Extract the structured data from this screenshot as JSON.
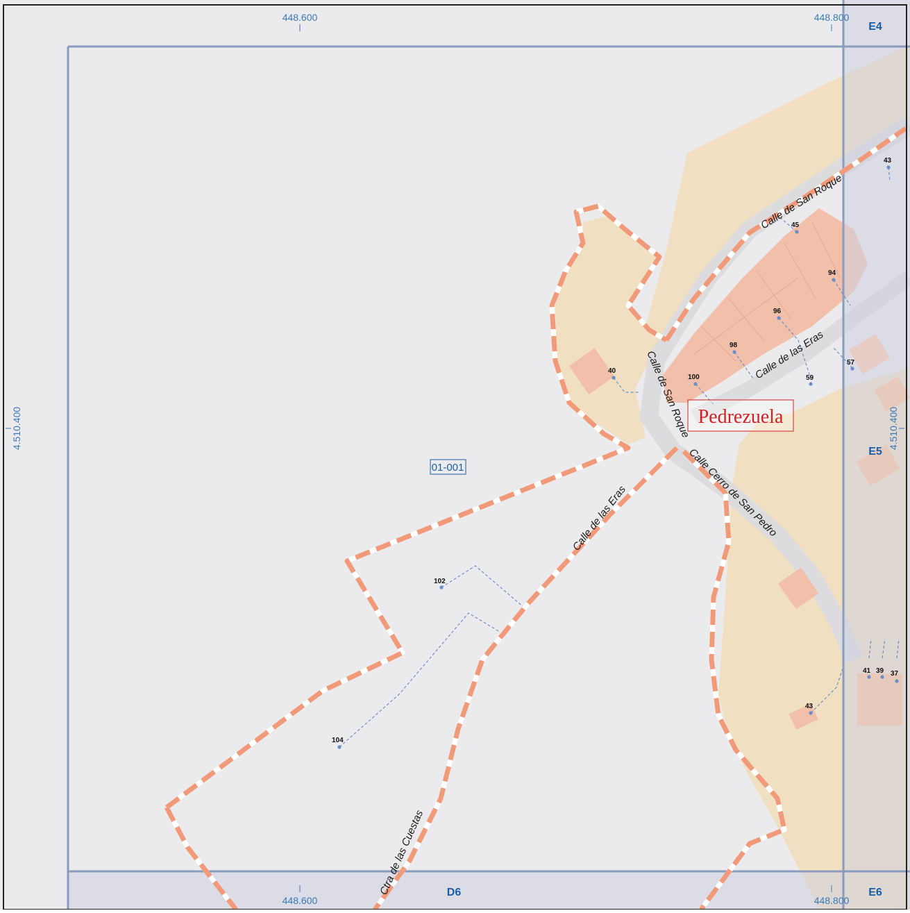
{
  "map": {
    "place_name": "Pedrezuela",
    "section_id": "01-001",
    "colors": {
      "background": "#ebebed",
      "urban_area": "#f1dfc2",
      "buildings": "#f1bfaa",
      "adjacent_panel": "#d6d8e6",
      "grid_line": "#8a9bc0",
      "boundary": "#f19a7a",
      "coord_text": "#3b78b8",
      "grid_text": "#1b5ea5",
      "place_text": "#d42020"
    },
    "coordinates": {
      "x_left_top": "448.600",
      "x_right_top": "448.800",
      "x_left_bottom": "448.600",
      "x_right_bottom": "448.800",
      "y_left": "4.510.400",
      "y_right": "4.510.400"
    },
    "grid_cells": {
      "top_right": "E4",
      "middle_right": "E5",
      "bottom_center": "D6",
      "bottom_right": "E6"
    },
    "streets": [
      {
        "label": "Calle de San Roque"
      },
      {
        "label": "Calle de las Eras"
      },
      {
        "label": "Calle de San Roque"
      },
      {
        "label": "Calle Cerro de San Pedro"
      },
      {
        "label": "Calle de las Eras"
      },
      {
        "label": "Ctra de las Cuestas"
      }
    ],
    "house_numbers": [
      "43",
      "45",
      "94",
      "96",
      "98",
      "100",
      "57",
      "59",
      "40",
      "102",
      "104",
      "43",
      "41",
      "39",
      "37"
    ]
  }
}
